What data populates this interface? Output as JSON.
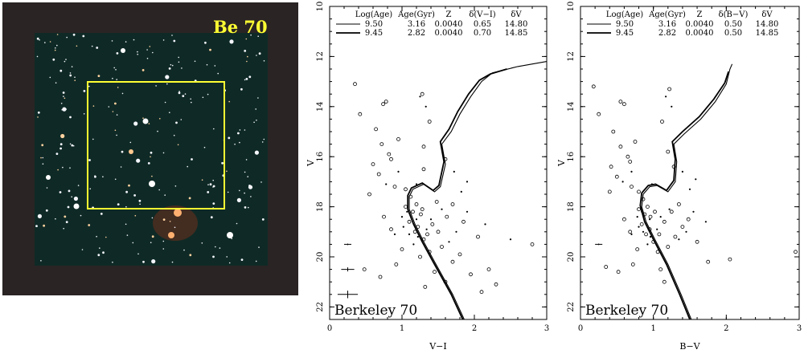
{
  "figure": {
    "image_label": "Be 70",
    "colors": {
      "field_frame": "#ffff33",
      "field_background": "#2a2424",
      "label": "#ffff33"
    }
  },
  "chart_data": [
    {
      "type": "scatter",
      "title": "",
      "xlabel": "V−I",
      "ylabel": "V",
      "xlim": [
        0,
        3
      ],
      "ylim": [
        22.5,
        10
      ],
      "xticks": [
        "0",
        "1",
        "2",
        "3"
      ],
      "yticks": [
        "10",
        "12",
        "14",
        "16",
        "18",
        "20",
        "22"
      ],
      "annotation": "Berkeley 70",
      "legend": {
        "placement": "top",
        "headers": [
          "Log(Age)",
          "Age(Gyr)",
          "Z",
          "δ(V−I)",
          "δV"
        ],
        "rows": [
          {
            "cells": [
              "9.50",
              "3.16",
              "0.0040",
              "0.65",
              "14.80"
            ]
          },
          {
            "cells": [
              "9.45",
              "2.82",
              "0.0040",
              "0.70",
              "14.85"
            ]
          }
        ]
      },
      "isochrones": [
        {
          "points": [
            [
              1.86,
              22.5
            ],
            [
              1.7,
              21.5
            ],
            [
              1.45,
              20.2
            ],
            [
              1.3,
              19.4
            ],
            [
              1.18,
              18.7
            ],
            [
              1.1,
              18.1
            ],
            [
              1.1,
              17.6
            ],
            [
              1.15,
              17.3
            ],
            [
              1.3,
              17.1
            ],
            [
              1.45,
              17.4
            ],
            [
              1.53,
              17.2
            ],
            [
              1.6,
              16.3
            ],
            [
              1.55,
              15.5
            ],
            [
              1.68,
              15.0
            ],
            [
              1.8,
              14.3
            ],
            [
              1.95,
              13.6
            ],
            [
              2.1,
              13.0
            ],
            [
              2.25,
              12.65
            ],
            [
              2.6,
              12.4
            ],
            [
              3.0,
              12.2
            ]
          ]
        },
        {
          "points": [
            [
              1.84,
              22.5
            ],
            [
              1.68,
              21.5
            ],
            [
              1.43,
              20.2
            ],
            [
              1.28,
              19.4
            ],
            [
              1.16,
              18.7
            ],
            [
              1.08,
              18.1
            ],
            [
              1.08,
              17.55
            ],
            [
              1.13,
              17.25
            ],
            [
              1.28,
              17.05
            ],
            [
              1.43,
              17.35
            ],
            [
              1.51,
              17.15
            ],
            [
              1.58,
              16.2
            ],
            [
              1.53,
              15.4
            ],
            [
              1.65,
              14.9
            ],
            [
              1.77,
              14.2
            ],
            [
              1.92,
              13.5
            ],
            [
              2.07,
              12.95
            ],
            [
              2.22,
              12.7
            ],
            [
              2.45,
              12.5
            ]
          ]
        }
      ],
      "stars_open": [
        [
          0.35,
          13.1
        ],
        [
          0.42,
          14.3
        ],
        [
          0.78,
          13.8
        ],
        [
          0.74,
          13.9
        ],
        [
          1.28,
          13.5
        ],
        [
          0.64,
          14.9
        ],
        [
          0.72,
          15.5
        ],
        [
          0.82,
          15.9
        ],
        [
          0.6,
          16.3
        ],
        [
          0.68,
          16.7
        ],
        [
          0.85,
          16.1
        ],
        [
          0.95,
          15.3
        ],
        [
          1.3,
          15.6
        ],
        [
          1.38,
          14.6
        ],
        [
          0.55,
          17.5
        ],
        [
          0.9,
          17.2
        ],
        [
          1.05,
          17.3
        ],
        [
          1.12,
          17.6
        ],
        [
          1.2,
          17.9
        ],
        [
          1.26,
          18.3
        ],
        [
          1.1,
          18.6
        ],
        [
          1.18,
          19.0
        ],
        [
          1.3,
          19.3
        ],
        [
          1.38,
          19.8
        ],
        [
          1.0,
          19.7
        ],
        [
          0.92,
          20.3
        ],
        [
          1.45,
          20.6
        ],
        [
          1.6,
          21.0
        ],
        [
          1.7,
          20.2
        ],
        [
          1.55,
          19.6
        ],
        [
          1.8,
          19.9
        ],
        [
          1.95,
          20.7
        ],
        [
          2.1,
          21.4
        ],
        [
          0.75,
          18.4
        ],
        [
          0.85,
          18.9
        ],
        [
          1.05,
          18.0
        ],
        [
          1.15,
          18.2
        ],
        [
          1.22,
          18.8
        ],
        [
          1.28,
          18.1
        ],
        [
          1.35,
          19.1
        ],
        [
          1.42,
          18.7
        ],
        [
          1.5,
          19.0
        ],
        [
          1.62,
          18.4
        ],
        [
          1.48,
          17.8
        ],
        [
          1.7,
          17.9
        ],
        [
          1.85,
          18.6
        ],
        [
          2.05,
          19.2
        ],
        [
          2.2,
          20.5
        ],
        [
          2.3,
          21.1
        ],
        [
          2.8,
          19.5
        ],
        [
          1.6,
          16.1
        ],
        [
          1.3,
          16.5
        ],
        [
          0.48,
          20.5
        ],
        [
          0.7,
          20.8
        ],
        [
          1.25,
          20.0
        ],
        [
          1.32,
          21.2
        ]
      ],
      "stars_dot": [
        [
          1.25,
          13.6
        ],
        [
          1.33,
          14.0
        ],
        [
          0.95,
          16.6
        ],
        [
          0.78,
          17.1
        ],
        [
          1.2,
          17.1
        ],
        [
          1.0,
          18.4
        ],
        [
          1.1,
          19.1
        ],
        [
          1.16,
          19.5
        ],
        [
          1.4,
          18.5
        ],
        [
          1.55,
          18.1
        ],
        [
          1.65,
          19.4
        ],
        [
          1.75,
          19.0
        ],
        [
          1.9,
          18.2
        ],
        [
          2.15,
          18.7
        ],
        [
          2.5,
          19.3
        ],
        [
          1.72,
          16.6
        ],
        [
          1.82,
          17.4
        ],
        [
          1.9,
          17.0
        ],
        [
          0.9,
          19.1
        ],
        [
          1.02,
          18.8
        ],
        [
          1.2,
          18.5
        ],
        [
          1.34,
          18.9
        ],
        [
          1.22,
          19.2
        ],
        [
          1.07,
          18.2
        ]
      ],
      "error_bars": [
        [
          0.25,
          19.5,
          0.05,
          0.03
        ],
        [
          0.25,
          20.5,
          0.09,
          0.08
        ],
        [
          0.25,
          21.5,
          0.14,
          0.15
        ]
      ]
    },
    {
      "type": "scatter",
      "title": "",
      "xlabel": "B−V",
      "ylabel": "V",
      "xlim": [
        0,
        3
      ],
      "ylim": [
        22.5,
        10
      ],
      "xticks": [
        "0",
        "1",
        "2",
        "3"
      ],
      "yticks": [
        "10",
        "12",
        "14",
        "16",
        "18",
        "20",
        "22"
      ],
      "annotation": "Berkeley 70",
      "legend": {
        "placement": "top",
        "headers": [
          "Log(Age)",
          "Age(Gyr)",
          "Z",
          "δ(B−V)",
          "δV"
        ],
        "rows": [
          {
            "cells": [
              "9.50",
              "3.16",
              "0.0040",
              "0.50",
              "14.80"
            ]
          },
          {
            "cells": [
              "9.45",
              "2.82",
              "0.0040",
              "0.50",
              "14.85"
            ]
          }
        ]
      },
      "isochrones": [
        {
          "points": [
            [
              1.52,
              22.5
            ],
            [
              1.38,
              21.5
            ],
            [
              1.2,
              20.3
            ],
            [
              1.02,
              19.3
            ],
            [
              0.9,
              18.6
            ],
            [
              0.84,
              18.0
            ],
            [
              0.86,
              17.5
            ],
            [
              0.95,
              17.2
            ],
            [
              1.05,
              17.15
            ],
            [
              1.2,
              17.4
            ],
            [
              1.3,
              17.0
            ],
            [
              1.32,
              16.2
            ],
            [
              1.28,
              15.5
            ],
            [
              1.42,
              15.1
            ],
            [
              1.65,
              14.5
            ],
            [
              1.85,
              13.8
            ],
            [
              2.0,
              13.1
            ],
            [
              2.05,
              12.5
            ],
            [
              2.08,
              12.3
            ]
          ]
        },
        {
          "points": [
            [
              1.5,
              22.5
            ],
            [
              1.36,
              21.5
            ],
            [
              1.18,
              20.3
            ],
            [
              1.0,
              19.3
            ],
            [
              0.88,
              18.6
            ],
            [
              0.82,
              17.95
            ],
            [
              0.84,
              17.45
            ],
            [
              0.93,
              17.15
            ],
            [
              1.03,
              17.1
            ],
            [
              1.18,
              17.35
            ],
            [
              1.28,
              16.95
            ],
            [
              1.3,
              16.1
            ],
            [
              1.26,
              15.4
            ],
            [
              1.4,
              15.0
            ],
            [
              1.63,
              14.4
            ],
            [
              1.83,
              13.7
            ],
            [
              1.98,
              13.05
            ],
            [
              2.03,
              12.6
            ]
          ]
        }
      ],
      "stars_open": [
        [
          0.18,
          13.2
        ],
        [
          0.25,
          14.3
        ],
        [
          0.55,
          13.8
        ],
        [
          0.6,
          13.9
        ],
        [
          1.22,
          13.3
        ],
        [
          0.45,
          15.0
        ],
        [
          0.55,
          15.6
        ],
        [
          0.65,
          16.0
        ],
        [
          0.42,
          16.4
        ],
        [
          0.5,
          16.8
        ],
        [
          0.68,
          16.2
        ],
        [
          0.75,
          15.4
        ],
        [
          0.4,
          17.4
        ],
        [
          0.7,
          17.2
        ],
        [
          0.8,
          17.4
        ],
        [
          0.86,
          17.7
        ],
        [
          0.92,
          18.0
        ],
        [
          0.96,
          18.4
        ],
        [
          0.84,
          18.7
        ],
        [
          0.9,
          19.1
        ],
        [
          1.0,
          19.4
        ],
        [
          1.06,
          19.8
        ],
        [
          0.78,
          19.7
        ],
        [
          0.72,
          20.3
        ],
        [
          1.1,
          20.5
        ],
        [
          1.2,
          19.6
        ],
        [
          1.3,
          19.2
        ],
        [
          1.4,
          18.8
        ],
        [
          0.6,
          18.5
        ],
        [
          0.68,
          19.0
        ],
        [
          0.8,
          18.1
        ],
        [
          0.88,
          18.3
        ],
        [
          0.95,
          18.9
        ],
        [
          1.02,
          18.2
        ],
        [
          1.08,
          19.1
        ],
        [
          1.15,
          18.6
        ],
        [
          1.25,
          18.2
        ],
        [
          1.35,
          17.9
        ],
        [
          1.48,
          18.5
        ],
        [
          1.6,
          19.4
        ],
        [
          1.75,
          20.2
        ],
        [
          2.05,
          20.1
        ],
        [
          2.95,
          19.8
        ],
        [
          1.2,
          15.8
        ],
        [
          1.12,
          14.6
        ],
        [
          1.28,
          16.4
        ],
        [
          0.35,
          20.4
        ],
        [
          0.52,
          20.6
        ],
        [
          1.15,
          21.0
        ]
      ],
      "stars_dot": [
        [
          1.17,
          13.6
        ],
        [
          1.25,
          14.0
        ],
        [
          0.7,
          16.6
        ],
        [
          0.58,
          17.0
        ],
        [
          0.98,
          17.1
        ],
        [
          0.78,
          18.4
        ],
        [
          0.86,
          19.0
        ],
        [
          0.92,
          19.5
        ],
        [
          1.1,
          18.4
        ],
        [
          1.22,
          18.1
        ],
        [
          1.35,
          19.3
        ],
        [
          1.45,
          19.0
        ],
        [
          1.55,
          18.2
        ],
        [
          1.72,
          18.6
        ],
        [
          1.4,
          16.6
        ],
        [
          1.5,
          17.3
        ],
        [
          1.58,
          16.9
        ],
        [
          0.7,
          19.1
        ],
        [
          0.8,
          18.8
        ],
        [
          0.95,
          18.5
        ],
        [
          1.05,
          18.9
        ],
        [
          0.96,
          19.2
        ],
        [
          0.84,
          18.2
        ]
      ],
      "error_bars": [
        [
          0.25,
          19.5,
          0.05,
          0.03
        ]
      ]
    }
  ]
}
